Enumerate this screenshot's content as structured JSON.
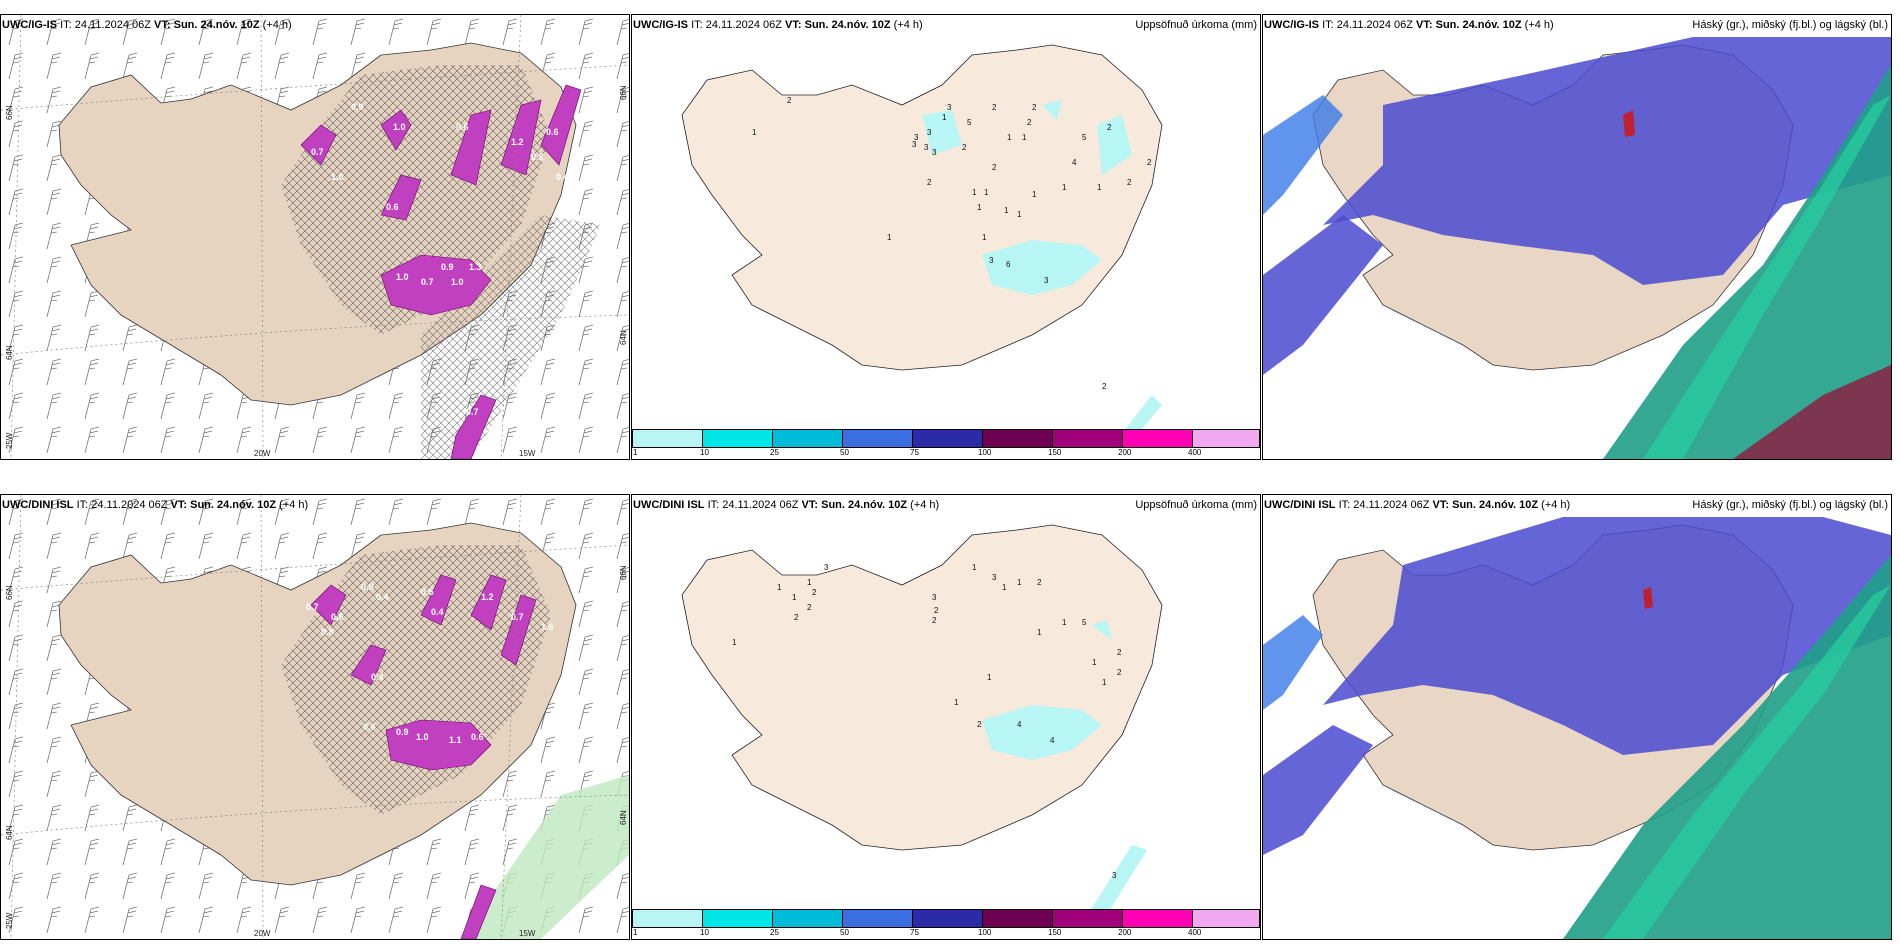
{
  "rows": [
    {
      "left": {
        "model": "UWC/IG-IS",
        "it": "IT: 24.11.2024 06Z",
        "vt": "VT: Sun. 24.nóv. 10Z",
        "lead": "(+4 h)"
      },
      "middle": {
        "model": "UWC/IG-IS",
        "it": "IT: 24.11.2024 06Z",
        "vt": "VT: Sun. 24.nóv. 10Z",
        "lead": "(+4 h)",
        "right_title": "Uppsöfnuð úrkoma (mm)"
      },
      "right": {
        "model": "UWC/IG-IS",
        "it": "IT: 24.11.2024 06Z",
        "vt": "VT: Sun. 24.nóv. 10Z",
        "lead": "(+4 h)",
        "right_title": "Háský (gr.), miðský (fj.bl.) og lágský (bl.)"
      }
    },
    {
      "left": {
        "model": "UWC/DINI ISL",
        "it": "IT: 24.11.2024 06Z",
        "vt": "VT: Sun. 24.nóv. 10Z",
        "lead": "(+4 h)"
      },
      "middle": {
        "model": "UWC/DINI ISL",
        "it": "IT: 24.11.2024 06Z",
        "vt": "VT: Sun. 24.nóv. 10Z",
        "lead": "(+4 h)",
        "right_title": "Uppsöfnuð úrkoma (mm)"
      },
      "right": {
        "model": "UWC/DINI ISL",
        "it": "IT: 24.11.2024 06Z",
        "vt": "VT: Sun. 24.nóv. 10Z",
        "lead": "(+4 h)",
        "right_title": "Háský (gr.), miðský (fj.bl.) og lágský (bl.)"
      }
    }
  ],
  "axis_labels": {
    "lat66_left": "66N",
    "lat66_right": "66N",
    "lat64_left": "64N",
    "lat64_right": "64N",
    "lon25": "25W",
    "lon20": "20W",
    "lon15": "15W"
  },
  "colorbar": {
    "ticks": [
      "1",
      "10",
      "25",
      "50",
      "75",
      "100",
      "150",
      "200",
      "400"
    ],
    "colors": [
      "#b8f6f6",
      "#00e6e6",
      "#00bcd9",
      "#3b6fe0",
      "#2b2ba8",
      "#6d0050",
      "#a0007a",
      "#ff00b4",
      "#f0a8f0"
    ]
  },
  "precip_labels_top": [
    "2",
    "1",
    "1",
    "3",
    "3",
    "5",
    "3",
    "2",
    "2",
    "3",
    "3",
    "3",
    "2",
    "1",
    "1",
    "5",
    "2",
    "2",
    "4",
    "1",
    "1",
    "2",
    "1",
    "1",
    "1",
    "1",
    "1",
    "2",
    "2",
    "1",
    "1",
    "1",
    "3",
    "6",
    "3",
    "2",
    "2"
  ],
  "precip_labels_bottom": [
    "1",
    "1",
    "1",
    "3",
    "1",
    "2",
    "2",
    "2",
    "3",
    "2",
    "2",
    "3",
    "1",
    "1",
    "5",
    "1",
    "1",
    "2",
    "1",
    "2",
    "1",
    "1",
    "1",
    "2",
    "4",
    "4",
    "1",
    "2",
    "3"
  ],
  "snow_labels_top": [
    "0.7",
    "0.9",
    "0.6",
    "1.0",
    "0.7",
    "0.6",
    "0.9",
    "1.0",
    "1.3",
    "1.2",
    "0.8",
    "0.4",
    "0.6",
    "1.0",
    "1.0",
    "0.7"
  ],
  "snow_labels_bottom": [
    "0.7",
    "0.9",
    "0.8",
    "0.6",
    "0.4",
    "0.9",
    "0.6",
    "0.4",
    "1.0",
    "1.1",
    "0.6",
    "1.6",
    "0.4",
    "0.7",
    "1.2",
    "0.5"
  ]
}
